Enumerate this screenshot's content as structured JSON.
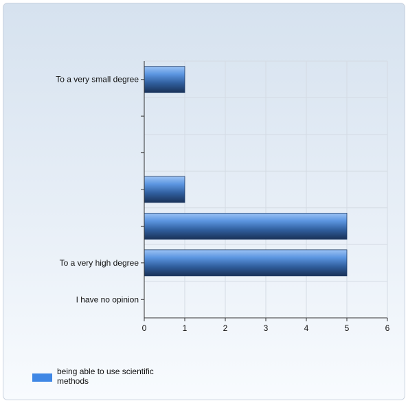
{
  "chart_data": {
    "type": "bar",
    "orientation": "horizontal",
    "categories": [
      "To a very small degree",
      "",
      "",
      "",
      "",
      "To a very high degree",
      "I have no opinion"
    ],
    "series": [
      {
        "name": "being able to use scientific methods",
        "values": [
          1,
          0,
          0,
          1,
          5,
          5,
          0
        ]
      }
    ],
    "xlim": [
      0,
      6
    ],
    "x_ticks": [
      "0",
      "1",
      "2",
      "3",
      "4",
      "5",
      "6"
    ],
    "grid": true,
    "legend_position": "bottom-left",
    "colors": {
      "bar_light": "#8fb9f2",
      "bar_mid": "#4a86d8",
      "bar_dark": "#1c3860",
      "grid": "#d4dbe4",
      "axis": "#333333"
    }
  },
  "legend": {
    "label_line1": "being able to use scientific",
    "label_line2": "methods"
  }
}
